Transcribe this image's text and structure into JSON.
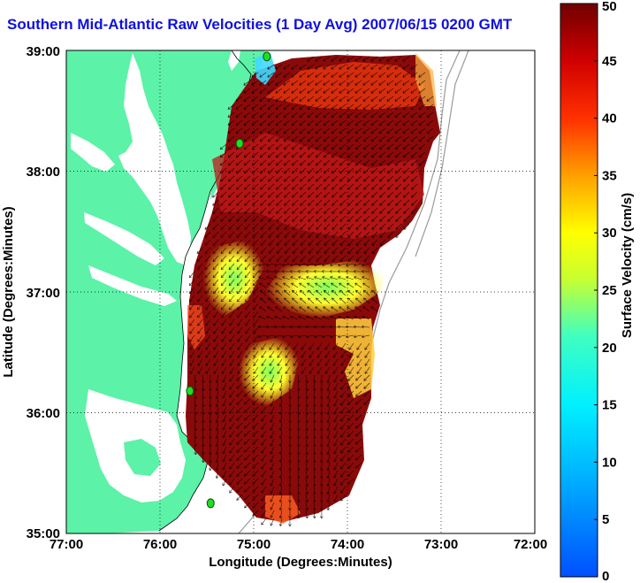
{
  "title": "Southern Mid-Atlantic Raw Velocities (1 Day Avg) 2007/06/15 0200 GMT",
  "axes": {
    "xlabel": "Longitude (Degrees:Minutes)",
    "ylabel": "Latitude (Degrees:Minutes)",
    "x_ticks": [
      "77:00",
      "76:00",
      "75:00",
      "74:00",
      "73:00",
      "72:00"
    ],
    "y_ticks": [
      "39:00",
      "38:00",
      "37:00",
      "36:00",
      "35:00"
    ]
  },
  "colorbar": {
    "label": "Surface Velocity (cm/s)",
    "ticks": [
      "0",
      "5",
      "10",
      "15",
      "20",
      "25",
      "30",
      "35",
      "40",
      "45",
      "50"
    ],
    "min": 0,
    "max": 50
  },
  "colors": {
    "land": "#5cf2a8",
    "title": "#1010e0",
    "station": "#22dd22"
  },
  "stations": [
    {
      "lon": -74.86,
      "lat": 38.95
    },
    {
      "lon": -75.15,
      "lat": 38.23
    },
    {
      "lon": -75.68,
      "lat": 36.18
    },
    {
      "lon": -75.46,
      "lat": 35.25
    }
  ]
}
